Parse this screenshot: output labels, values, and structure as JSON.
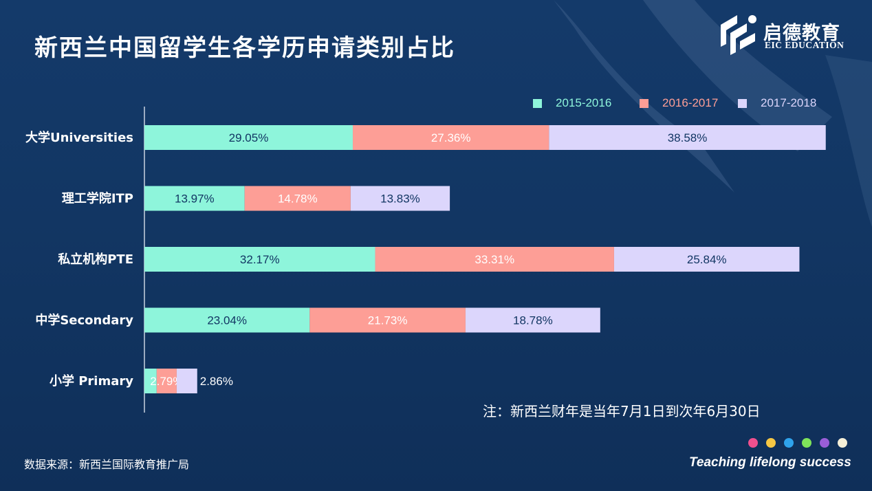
{
  "page": {
    "title": "新西兰中国留学生各学历申请类别占比",
    "note": "注：新西兰财年是当年7月1日到次年6月30日",
    "source": "数据来源：新西兰国际教育推广局",
    "slogan": "Teaching lifelong success"
  },
  "logo": {
    "name_cn": "启德教育",
    "name_en": "EIC EDUCATION",
    "icon": "eic-logo-icon"
  },
  "colors": {
    "background": "#123663",
    "series": [
      "#8ef5db",
      "#fd9e96",
      "#dcd6fc"
    ],
    "dots": [
      "#f0508e",
      "#f6c744",
      "#2fa3ec",
      "#7ee35a",
      "#9a5ed8",
      "#f5efd8"
    ]
  },
  "chart_data": {
    "type": "bar",
    "orientation": "horizontal",
    "stacked": true,
    "categories": [
      "大学Universities",
      "理工学院ITP",
      "私立机构PTE",
      "中学Secondary",
      "小学 Primary"
    ],
    "series": [
      {
        "name": "2015-2016",
        "values": [
          29.05,
          13.97,
          32.17,
          23.04,
          1.71
        ]
      },
      {
        "name": "2016-2017",
        "values": [
          27.36,
          14.78,
          33.31,
          21.73,
          2.79
        ]
      },
      {
        "name": "2017-2018",
        "values": [
          38.58,
          13.83,
          25.84,
          18.78,
          2.86
        ]
      }
    ],
    "data_labels": [
      [
        "29.05%",
        "13.97%",
        "32.17%",
        "23.04%",
        ""
      ],
      [
        "27.36%",
        "14.78%",
        "33.31%",
        "21.73%",
        "2.79%"
      ],
      [
        "38.58%",
        "13.83%",
        "25.84%",
        "18.78%",
        "2.86%"
      ]
    ],
    "xlim": [
      0,
      100
    ],
    "grid": false,
    "legend_position": "top-right",
    "title": "新西兰中国留学生各学历申请类别占比",
    "xlabel": "",
    "ylabel": ""
  }
}
